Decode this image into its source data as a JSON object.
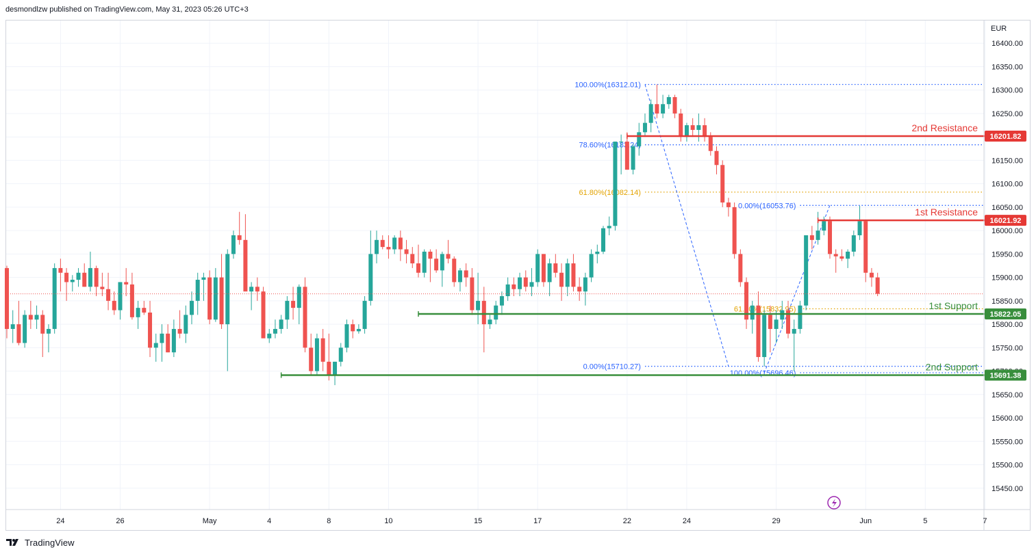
{
  "header": {
    "publisher_line": "desmondlzw published on TradingView.com, May 31, 2023 05:26 UTC+3"
  },
  "footer": {
    "brand": "TradingView"
  },
  "colors": {
    "up": "#26a69a",
    "down": "#ef5350",
    "resistance": "#e53935",
    "support": "#388e3c",
    "fib_blue": "#2962ff",
    "fib_gold": "#e3a300",
    "grid": "#f0f3fa",
    "text": "#131722",
    "last_price": "#ef5350"
  },
  "chart_data": {
    "type": "candlestick",
    "currency_label": "EUR",
    "ylim": [
      15400,
      16450
    ],
    "y_ticks": [
      15450,
      15500,
      15550,
      15600,
      15650,
      15700,
      15750,
      15800,
      15850,
      15900,
      15950,
      16000,
      16050,
      16100,
      16150,
      16200,
      16250,
      16300,
      16350,
      16400
    ],
    "x_ticks": [
      {
        "label": "24",
        "index": 9
      },
      {
        "label": "26",
        "index": 19
      },
      {
        "label": "May",
        "index": 34
      },
      {
        "label": "4",
        "index": 44
      },
      {
        "label": "8",
        "index": 54
      },
      {
        "label": "10",
        "index": 64
      },
      {
        "label": "15",
        "index": 79
      },
      {
        "label": "17",
        "index": 89
      },
      {
        "label": "22",
        "index": 104
      },
      {
        "label": "24",
        "index": 114
      },
      {
        "label": "29",
        "index": 129
      },
      {
        "label": "Jun",
        "index": 144
      },
      {
        "label": "5",
        "index": 154
      },
      {
        "label": "7",
        "index": 164
      }
    ],
    "candles": [
      [
        15920,
        15925,
        15770,
        15790
      ],
      [
        15790,
        15830,
        15760,
        15800
      ],
      [
        15800,
        15850,
        15755,
        15760
      ],
      [
        15760,
        15830,
        15750,
        15820
      ],
      [
        15820,
        15850,
        15790,
        15810
      ],
      [
        15810,
        15840,
        15790,
        15820
      ],
      [
        15820,
        15830,
        15730,
        15780
      ],
      [
        15780,
        15800,
        15740,
        15790
      ],
      [
        15790,
        15930,
        15780,
        15920
      ],
      [
        15920,
        15940,
        15870,
        15910
      ],
      [
        15910,
        15920,
        15850,
        15890
      ],
      [
        15890,
        15905,
        15870,
        15895
      ],
      [
        15895,
        15920,
        15880,
        15910
      ],
      [
        15910,
        15930,
        15880,
        15880
      ],
      [
        15880,
        15955,
        15870,
        15920
      ],
      [
        15920,
        15925,
        15860,
        15880
      ],
      [
        15880,
        15910,
        15860,
        15875
      ],
      [
        15875,
        15910,
        15830,
        15850
      ],
      [
        15850,
        15870,
        15820,
        15830
      ],
      [
        15830,
        15890,
        15810,
        15890
      ],
      [
        15890,
        15920,
        15860,
        15885
      ],
      [
        15885,
        15910,
        15810,
        15815
      ],
      [
        15815,
        15850,
        15790,
        15835
      ],
      [
        15835,
        15850,
        15820,
        15825
      ],
      [
        15825,
        15850,
        15730,
        15750
      ],
      [
        15750,
        15780,
        15720,
        15760
      ],
      [
        15760,
        15800,
        15720,
        15780
      ],
      [
        15780,
        15800,
        15740,
        15740
      ],
      [
        15740,
        15810,
        15730,
        15790
      ],
      [
        15790,
        15830,
        15770,
        15780
      ],
      [
        15780,
        15840,
        15760,
        15820
      ],
      [
        15820,
        15870,
        15800,
        15850
      ],
      [
        15850,
        15910,
        15820,
        15895
      ],
      [
        15895,
        15910,
        15850,
        15900
      ],
      [
        15900,
        15915,
        15800,
        15810
      ],
      [
        15810,
        15920,
        15805,
        15900
      ],
      [
        15900,
        15950,
        15790,
        15800
      ],
      [
        15800,
        15960,
        15700,
        15950
      ],
      [
        15950,
        16000,
        15940,
        15990
      ],
      [
        15990,
        16040,
        15970,
        15980
      ],
      [
        15980,
        16035,
        15880,
        15870
      ],
      [
        15870,
        15890,
        15830,
        15880
      ],
      [
        15880,
        15900,
        15850,
        15870
      ],
      [
        15870,
        15880,
        15780,
        15770
      ],
      [
        15770,
        15790,
        15760,
        15780
      ],
      [
        15780,
        15810,
        15770,
        15790
      ],
      [
        15790,
        15820,
        15780,
        15810
      ],
      [
        15810,
        15860,
        15790,
        15850
      ],
      [
        15850,
        15880,
        15810,
        15835
      ],
      [
        15835,
        15885,
        15800,
        15880
      ],
      [
        15880,
        15900,
        15740,
        15750
      ],
      [
        15750,
        15780,
        15690,
        15700
      ],
      [
        15700,
        15780,
        15690,
        15770
      ],
      [
        15770,
        15790,
        15700,
        15720
      ],
      [
        15720,
        15780,
        15680,
        15690
      ],
      [
        15690,
        15720,
        15670,
        15720
      ],
      [
        15720,
        15760,
        15710,
        15750
      ],
      [
        15750,
        15810,
        15740,
        15800
      ],
      [
        15800,
        15810,
        15770,
        15785
      ],
      [
        15785,
        15800,
        15780,
        15790
      ],
      [
        15790,
        15860,
        15780,
        15850
      ],
      [
        15850,
        16000,
        15840,
        15950
      ],
      [
        15950,
        16000,
        15930,
        15980
      ],
      [
        15980,
        15990,
        15960,
        15965
      ],
      [
        15965,
        15990,
        15940,
        15960
      ],
      [
        15960,
        15990,
        15950,
        15985
      ],
      [
        15985,
        16000,
        15935,
        15960
      ],
      [
        15960,
        15980,
        15930,
        15950
      ],
      [
        15950,
        15965,
        15920,
        15930
      ],
      [
        15930,
        15970,
        15900,
        15910
      ],
      [
        15910,
        15960,
        15900,
        15955
      ],
      [
        15955,
        15960,
        15890,
        15940
      ],
      [
        15940,
        15960,
        15910,
        15915
      ],
      [
        15915,
        15955,
        15880,
        15950
      ],
      [
        15950,
        15980,
        15930,
        15940
      ],
      [
        15940,
        15945,
        15880,
        15890
      ],
      [
        15890,
        15920,
        15870,
        15915
      ],
      [
        15915,
        15930,
        15880,
        15900
      ],
      [
        15900,
        15920,
        15820,
        15830
      ],
      [
        15830,
        15910,
        15800,
        15850
      ],
      [
        15850,
        15880,
        15740,
        15800
      ],
      [
        15800,
        15820,
        15790,
        15810
      ],
      [
        15810,
        15850,
        15800,
        15840
      ],
      [
        15840,
        15870,
        15820,
        15860
      ],
      [
        15860,
        15900,
        15850,
        15885
      ],
      [
        15885,
        15900,
        15860,
        15875
      ],
      [
        15875,
        15910,
        15860,
        15900
      ],
      [
        15900,
        15915,
        15870,
        15880
      ],
      [
        15880,
        15920,
        15860,
        15890
      ],
      [
        15890,
        15960,
        15880,
        15950
      ],
      [
        15950,
        15950,
        15880,
        15890
      ],
      [
        15890,
        15940,
        15860,
        15930
      ],
      [
        15930,
        15950,
        15900,
        15910
      ],
      [
        15910,
        15930,
        15850,
        15880
      ],
      [
        15880,
        15940,
        15860,
        15930
      ],
      [
        15930,
        15950,
        15870,
        15880
      ],
      [
        15880,
        15900,
        15850,
        15870
      ],
      [
        15870,
        15910,
        15840,
        15900
      ],
      [
        15900,
        15960,
        15890,
        15950
      ],
      [
        15950,
        15970,
        15930,
        15955
      ],
      [
        15955,
        16010,
        15950,
        16005
      ],
      [
        16005,
        16030,
        15990,
        16010
      ],
      [
        16010,
        16190,
        16000,
        16190
      ],
      [
        16190,
        16205,
        16120,
        16190
      ],
      [
        16190,
        16210,
        16130,
        16130
      ],
      [
        16130,
        16185,
        16120,
        16180
      ],
      [
        16180,
        16230,
        16160,
        16210
      ],
      [
        16210,
        16250,
        16200,
        16230
      ],
      [
        16230,
        16280,
        16210,
        16270
      ],
      [
        16270,
        16312,
        16240,
        16250
      ],
      [
        16250,
        16290,
        16240,
        16270
      ],
      [
        16270,
        16290,
        16260,
        16285
      ],
      [
        16285,
        16290,
        16240,
        16250
      ],
      [
        16250,
        16260,
        16190,
        16200
      ],
      [
        16200,
        16230,
        16190,
        16225
      ],
      [
        16225,
        16240,
        16200,
        16215
      ],
      [
        16215,
        16250,
        16190,
        16225
      ],
      [
        16225,
        16240,
        16190,
        16200
      ],
      [
        16200,
        16210,
        16160,
        16170
      ],
      [
        16170,
        16180,
        16120,
        16140
      ],
      [
        16140,
        16150,
        16050,
        16060
      ],
      [
        16060,
        16070,
        16030,
        16050
      ],
      [
        16050,
        16060,
        15940,
        15950
      ],
      [
        15950,
        15960,
        15880,
        15890
      ],
      [
        15890,
        15900,
        15790,
        15810
      ],
      [
        15810,
        15850,
        15780,
        15840
      ],
      [
        15840,
        15870,
        15720,
        15730
      ],
      [
        15730,
        15830,
        15710,
        15820
      ],
      [
        15820,
        15840,
        15740,
        15790
      ],
      [
        15790,
        15830,
        15760,
        15810
      ],
      [
        15810,
        15850,
        15790,
        15830
      ],
      [
        15830,
        15850,
        15770,
        15780
      ],
      [
        15780,
        15810,
        15700,
        15790
      ],
      [
        15790,
        15850,
        15780,
        15840
      ],
      [
        15840,
        15990,
        15830,
        15990
      ],
      [
        15990,
        16010,
        15960,
        15980
      ],
      [
        15980,
        16040,
        15970,
        16000
      ],
      [
        16000,
        16030,
        15990,
        16020
      ],
      [
        16020,
        16030,
        15940,
        15950
      ],
      [
        15950,
        15960,
        15910,
        15945
      ],
      [
        15945,
        15960,
        15935,
        15940
      ],
      [
        15940,
        15960,
        15920,
        15955
      ],
      [
        15955,
        16000,
        15945,
        15990
      ],
      [
        15990,
        16053,
        15980,
        16020
      ],
      [
        16020,
        16022,
        15890,
        15910
      ],
      [
        15910,
        15920,
        15880,
        15900
      ],
      [
        15900,
        15910,
        15860,
        15865
      ]
    ],
    "last_price": 15865,
    "levels": [
      {
        "label": "2nd Resistance",
        "price": 16201.82,
        "price_label": "16201.82",
        "kind": "resistance",
        "start_index": 104
      },
      {
        "label": "1st Resistance",
        "price": 16021.92,
        "price_label": "16021.92",
        "kind": "resistance",
        "start_index": 136
      },
      {
        "label": "1st Support",
        "price": 15822.05,
        "price_label": "15822.05",
        "kind": "support",
        "start_index": 69
      },
      {
        "label": "2nd Support",
        "price": 15691.38,
        "price_label": "15691.38",
        "kind": "support",
        "start_index": 46
      }
    ],
    "fib_lines": [
      {
        "label": "100.00%(16312.01)",
        "price": 16312.01,
        "from_index": 107,
        "color": "blue"
      },
      {
        "label": "78.60%(16183.24)",
        "price": 16183.24,
        "from_index": 107,
        "color": "blue"
      },
      {
        "label": "61.80%(16082.14)",
        "price": 16082.14,
        "from_index": 107,
        "color": "gold"
      },
      {
        "label": "0.00%(15710.27)",
        "price": 15710.27,
        "from_index": 107,
        "color": "blue"
      },
      {
        "label": "0.00%(16053.76)",
        "price": 16053.76,
        "from_index": 133,
        "color": "blue"
      },
      {
        "label": "61.80%(15832.95)",
        "price": 15832.95,
        "from_index": 133,
        "color": "gold"
      },
      {
        "label": "100.00%(15696.46)",
        "price": 15696.46,
        "from_index": 133,
        "color": "blue"
      }
    ],
    "swings": [
      {
        "from": [
          107,
          16312
        ],
        "to": [
          121,
          15710
        ]
      },
      {
        "from": [
          127,
          15696
        ],
        "to": [
          138,
          16054
        ]
      }
    ]
  }
}
